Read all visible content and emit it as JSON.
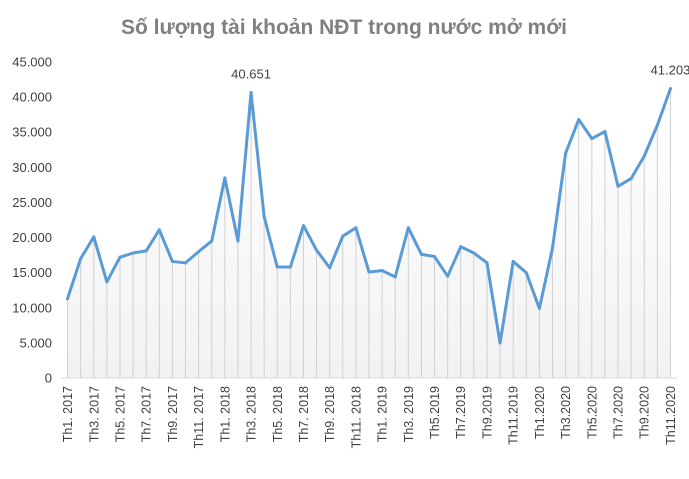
{
  "chart_data": {
    "type": "line",
    "title": "Số lượng tài khoản NĐT trong nước mở mới",
    "xlabel": "",
    "ylabel": "",
    "ylim": [
      0,
      45000
    ],
    "yticks": [
      0,
      5000,
      10000,
      15000,
      20000,
      25000,
      30000,
      35000,
      40000,
      45000
    ],
    "ytick_labels": [
      "0",
      "5.000",
      "10.000",
      "15.000",
      "20.000",
      "25.000",
      "30.000",
      "35.000",
      "40.000",
      "45.000"
    ],
    "grid": false,
    "legend": "none",
    "line_color": "#5b9bd5",
    "area_fill": "#f2f2f2",
    "x_tick_labels": [
      {
        "index": 0,
        "text": "Th1. 2017"
      },
      {
        "index": 2,
        "text": "Th3. 2017"
      },
      {
        "index": 4,
        "text": "Th5. 2017"
      },
      {
        "index": 6,
        "text": "Th7. 2017"
      },
      {
        "index": 8,
        "text": "Th9. 2017"
      },
      {
        "index": 10,
        "text": "Th11. 2017"
      },
      {
        "index": 12,
        "text": "Th1. 2018"
      },
      {
        "index": 14,
        "text": "Th3. 2018"
      },
      {
        "index": 16,
        "text": "Th5. 2018"
      },
      {
        "index": 18,
        "text": "Th7. 2018"
      },
      {
        "index": 20,
        "text": "Th9. 2018"
      },
      {
        "index": 22,
        "text": "Th11. 2018"
      },
      {
        "index": 24,
        "text": "Th1. 2019"
      },
      {
        "index": 26,
        "text": "Th3. 2019"
      },
      {
        "index": 28,
        "text": "Th5.2019"
      },
      {
        "index": 30,
        "text": "Th7.2019"
      },
      {
        "index": 32,
        "text": "Th9.2019"
      },
      {
        "index": 34,
        "text": "Th11.2019"
      },
      {
        "index": 36,
        "text": "Th1.2020"
      },
      {
        "index": 38,
        "text": "Th3.2020"
      },
      {
        "index": 40,
        "text": "Th5.2020"
      },
      {
        "index": 42,
        "text": "Th7.2020"
      },
      {
        "index": 44,
        "text": "Th9.2020"
      },
      {
        "index": 46,
        "text": "Th11.2020"
      }
    ],
    "values": [
      11300,
      17000,
      20100,
      13700,
      17200,
      17800,
      18100,
      21100,
      16600,
      16400,
      18000,
      19500,
      28500,
      19500,
      40651,
      23000,
      15800,
      15800,
      21700,
      18200,
      15700,
      20200,
      21400,
      15100,
      15300,
      14400,
      21400,
      17600,
      17300,
      14500,
      18700,
      17800,
      16400,
      5000,
      16600,
      15000,
      9900,
      18500,
      32000,
      36800,
      34100,
      35100,
      27300,
      28400,
      31600,
      36000,
      41203
    ],
    "data_labels": [
      {
        "index": 14,
        "text": "40.651"
      },
      {
        "index": 46,
        "text": "41.203"
      }
    ]
  }
}
